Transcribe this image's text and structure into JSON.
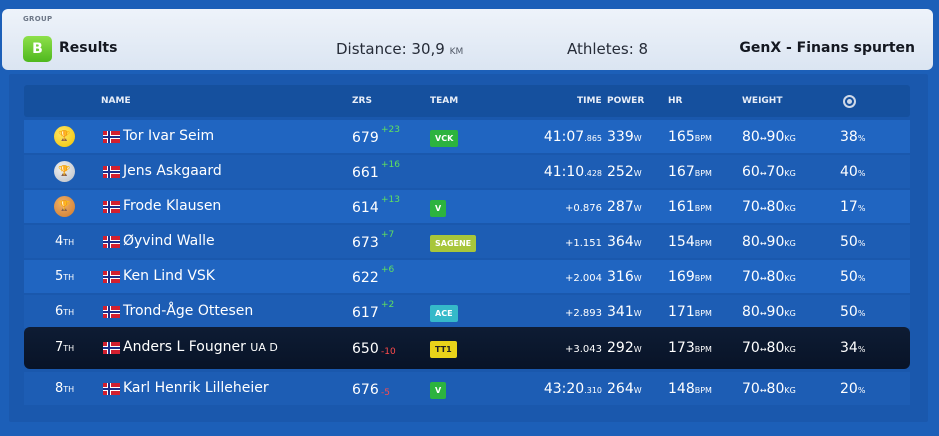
{
  "header": {
    "group_label": "GROUP",
    "group_letter": "B",
    "title": "Results",
    "distance_label": "Distance: 30,9",
    "distance_unit": "KM",
    "athletes": "Athletes: 8",
    "event": "GenX - Finans spurten"
  },
  "columns": {
    "name": "NAME",
    "zrs": "ZRS",
    "team": "TEAM",
    "time": "TIME",
    "power": "POWER",
    "hr": "HR",
    "weight": "WEIGHT"
  },
  "icons": {
    "rank_medal": "trophy-icon",
    "flag": "norway-flag-icon",
    "column_search": "zoom-icon"
  },
  "colors": {
    "background": "#1c5fb8",
    "header": "#dbe5f2",
    "group_badge": "#4fb81e",
    "positive_delta": "#5fe05f",
    "negative_delta": "#ff4b4b",
    "highlight_row": "#0b1830"
  },
  "rows": [
    {
      "rank": "",
      "medal": "gold",
      "name": "Tor Ivar Seim",
      "name_suffix": "",
      "zrs": "679",
      "zrs_delta": "+23",
      "delta_sign": "pos",
      "team": "VCK",
      "team_color": "#2cb33f",
      "time": "41:07",
      "time_small": ".865",
      "power": "339",
      "hr": "165",
      "weight": "80",
      "weight2": "90",
      "pct": "38"
    },
    {
      "rank": "",
      "medal": "silver",
      "name": "Jens Askgaard",
      "name_suffix": "",
      "zrs": "661",
      "zrs_delta": "+16",
      "delta_sign": "pos",
      "team": "",
      "team_color": "",
      "time": "41:10",
      "time_small": ".428",
      "power": "252",
      "hr": "167",
      "weight": "60",
      "weight2": "70",
      "pct": "40"
    },
    {
      "rank": "",
      "medal": "bronze",
      "name": "Frode Klausen",
      "name_suffix": "",
      "zrs": "614",
      "zrs_delta": "+13",
      "delta_sign": "pos",
      "team": "V",
      "team_color": "#2cb33f",
      "time": "",
      "time_small": "+0.876",
      "power": "287",
      "hr": "161",
      "weight": "70",
      "weight2": "80",
      "pct": "17"
    },
    {
      "rank": "4",
      "medal": "",
      "name": "Øyvind Walle",
      "name_suffix": "",
      "zrs": "673",
      "zrs_delta": "+7",
      "delta_sign": "pos",
      "team": "SAGENE",
      "team_color": "#a8c63a",
      "time": "",
      "time_small": "+1.151",
      "power": "364",
      "hr": "154",
      "weight": "80",
      "weight2": "90",
      "pct": "50"
    },
    {
      "rank": "5",
      "medal": "",
      "name": "Ken Lind VSK",
      "name_suffix": "",
      "zrs": "622",
      "zrs_delta": "+6",
      "delta_sign": "pos",
      "team": "",
      "team_color": "",
      "time": "",
      "time_small": "+2.004",
      "power": "316",
      "hr": "169",
      "weight": "70",
      "weight2": "80",
      "pct": "50"
    },
    {
      "rank": "6",
      "medal": "",
      "name": "Trond-Åge Ottesen",
      "name_suffix": "",
      "zrs": "617",
      "zrs_delta": "+2",
      "delta_sign": "pos",
      "team": "ACE",
      "team_color": "#35b9c9",
      "time": "",
      "time_small": "+2.893",
      "power": "341",
      "hr": "171",
      "weight": "80",
      "weight2": "90",
      "pct": "50"
    },
    {
      "rank": "7",
      "medal": "",
      "name": "Anders L Fougner",
      "name_suffix": "UA D",
      "zrs": "650",
      "zrs_delta": "-10",
      "delta_sign": "neg",
      "team": "TT1",
      "team_color": "#e8d21a",
      "time": "",
      "time_small": "+3.043",
      "power": "292",
      "hr": "173",
      "weight": "70",
      "weight2": "80",
      "pct": "34"
    },
    {
      "rank": "8",
      "medal": "",
      "name": "Karl Henrik Lilleheier",
      "name_suffix": "",
      "zrs": "676",
      "zrs_delta": "-5",
      "delta_sign": "neg",
      "team": "V",
      "team_color": "#2cb33f",
      "time": "43:20",
      "time_small": ".310",
      "power": "264",
      "hr": "148",
      "weight": "70",
      "weight2": "80",
      "pct": "20"
    }
  ],
  "units": {
    "rank_suffix": "TH",
    "power": "W",
    "hr": "BPM",
    "weight": "KG",
    "pct": "%",
    "range": "↔"
  }
}
